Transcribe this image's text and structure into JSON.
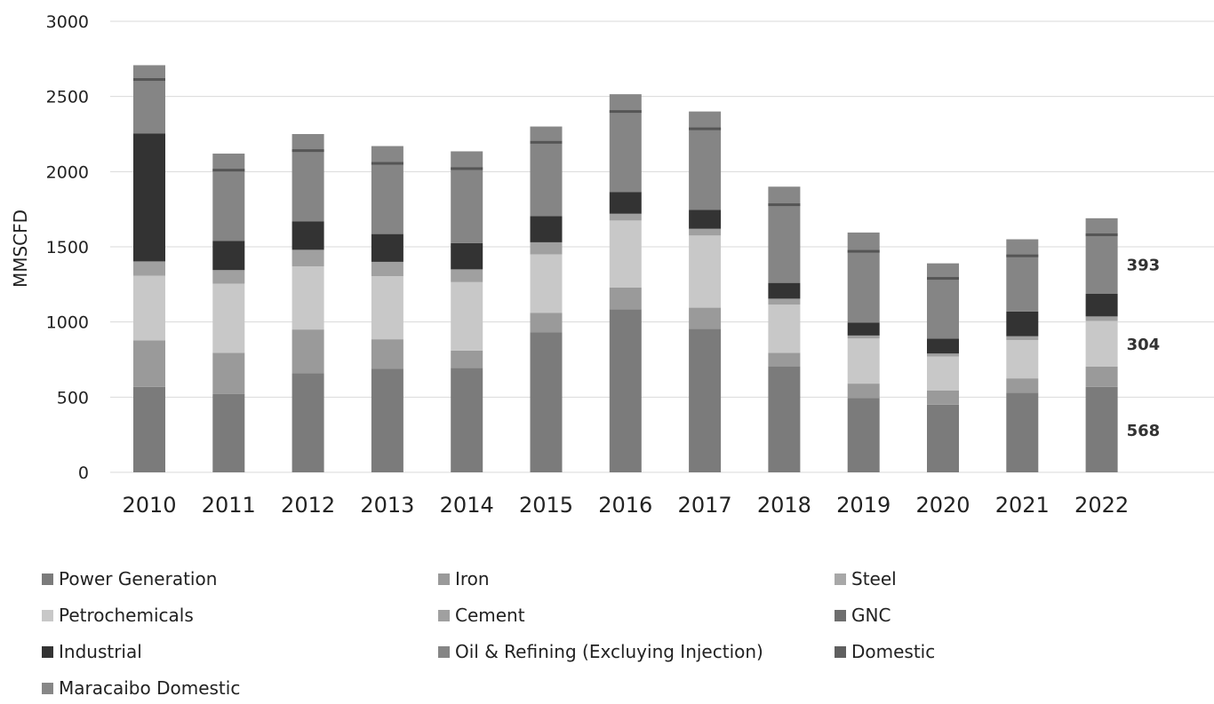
{
  "chart_data": {
    "type": "bar",
    "stacked": true,
    "title": "",
    "xlabel": "",
    "ylabel": "MMSCFD",
    "ylim": [
      0,
      3000
    ],
    "yticks": [
      "0",
      "500",
      "1000",
      "1500",
      "2000",
      "2500",
      "3000"
    ],
    "grid": true,
    "legend_position": "bottom",
    "categories": [
      "2010",
      "2011",
      "2012",
      "2013",
      "2014",
      "2015",
      "2016",
      "2017",
      "2018",
      "2019",
      "2020",
      "2021",
      "2022"
    ],
    "series": [
      {
        "name": "Power Generation",
        "color": "#7b7b7b",
        "values": [
          568,
          520,
          660,
          690,
          695,
          930,
          1085,
          955,
          705,
          495,
          450,
          530,
          568
        ]
      },
      {
        "name": "Iron",
        "color": "#9a9a9a",
        "values": [
          310,
          275,
          290,
          195,
          115,
          130,
          145,
          140,
          90,
          95,
          95,
          95,
          135
        ]
      },
      {
        "name": "Steel",
        "color": "#a8a8a8",
        "values": [
          0,
          0,
          0,
          0,
          0,
          0,
          0,
          0,
          0,
          0,
          0,
          0,
          0
        ]
      },
      {
        "name": "Petrochemicals",
        "color": "#c8c8c8",
        "values": [
          430,
          460,
          420,
          420,
          455,
          390,
          445,
          480,
          320,
          300,
          225,
          255,
          304
        ]
      },
      {
        "name": "Cement",
        "color": "#a0a0a0",
        "values": [
          95,
          90,
          110,
          95,
          85,
          80,
          45,
          45,
          40,
          20,
          20,
          25,
          30
        ]
      },
      {
        "name": "GNC",
        "color": "#6e6e6e",
        "values": [
          0,
          0,
          0,
          0,
          0,
          0,
          0,
          0,
          0,
          0,
          0,
          0,
          0
        ]
      },
      {
        "name": "Industrial",
        "color": "#333333",
        "values": [
          850,
          195,
          190,
          185,
          175,
          175,
          145,
          125,
          105,
          85,
          100,
          165,
          150
        ]
      },
      {
        "name": "Oil & Refining (Excluying Injection)",
        "color": "#858585",
        "values": [
          360,
          470,
          470,
          470,
          495,
          490,
          535,
          540,
          520,
          475,
          400,
          370,
          393
        ]
      },
      {
        "name": "Domestic",
        "color": "#5f5f5f",
        "values": [
          0,
          0,
          0,
          0,
          0,
          0,
          0,
          0,
          0,
          0,
          0,
          0,
          0
        ]
      },
      {
        "name": "Maracaibo  Domestic",
        "color": "#878787",
        "values": [
          95,
          110,
          110,
          115,
          115,
          105,
          115,
          115,
          120,
          125,
          100,
          110,
          110
        ]
      }
    ],
    "separator_color": "#555555",
    "data_labels": [
      {
        "category": "2022",
        "series": "Power Generation",
        "text": "568"
      },
      {
        "category": "2022",
        "series": "Petrochemicals",
        "text": "304"
      },
      {
        "category": "2022",
        "series": "Oil & Refining (Excluying Injection)",
        "text": "393"
      }
    ]
  }
}
